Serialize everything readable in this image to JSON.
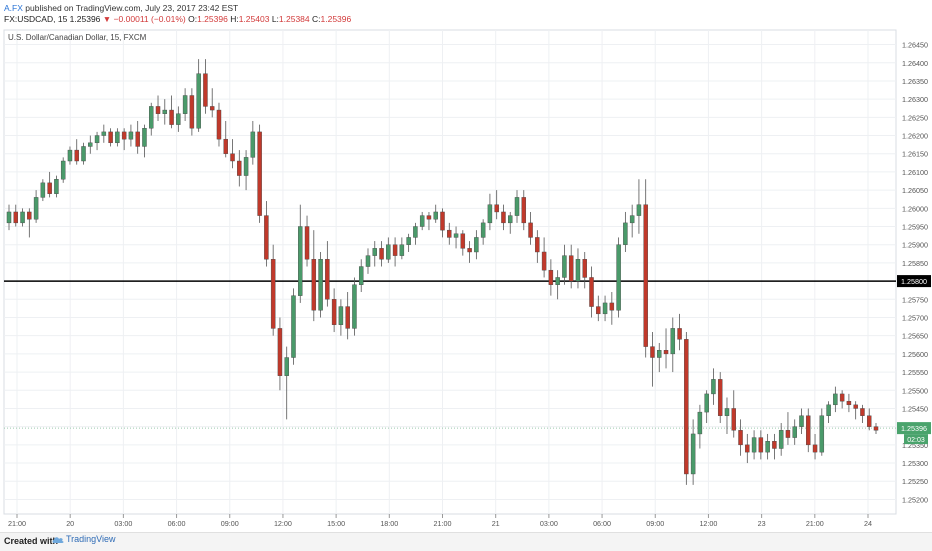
{
  "header": {
    "author": "A.FX",
    "published_text": "published on TradingView.com, July 23, 2017 23:42 EST",
    "symbol": "FX:USDCAD, 15",
    "last": "1.25396",
    "change": "−0.00011 (−0.01%)",
    "o_label": "O:",
    "o_value": "1.25396",
    "h_label": "H:",
    "h_value": "1.25403",
    "l_label": "L:",
    "l_value": "1.25384",
    "c_label": "C:",
    "c_value": "1.25396"
  },
  "footer": {
    "created_with": "Created with",
    "brand": "TradingView"
  },
  "chart_data": {
    "type": "candlestick",
    "title": "U.S. Dollar/Canadian Dollar, 15, FXCM",
    "ylim": [
      1.2516,
      1.2649
    ],
    "y_ticks": [
      "1.26450",
      "1.26400",
      "1.26350",
      "1.26300",
      "1.26250",
      "1.26200",
      "1.26150",
      "1.26100",
      "1.26050",
      "1.26000",
      "1.25950",
      "1.25900",
      "1.25850",
      "1.25800",
      "1.25750",
      "1.25700",
      "1.25650",
      "1.25600",
      "1.25550",
      "1.25500",
      "1.25450",
      "1.25400",
      "1.25350",
      "1.25300",
      "1.25250",
      "1.25200"
    ],
    "x_ticks": [
      "21:00",
      "20",
      "03:00",
      "06:00",
      "09:00",
      "12:00",
      "15:00",
      "18:00",
      "21:00",
      "21",
      "03:00",
      "06:00",
      "09:00",
      "12:00",
      "23",
      "21:00",
      "24"
    ],
    "horizontal_line": {
      "value": 1.258,
      "label": "1.25800"
    },
    "last_price": {
      "value": 1.25396,
      "label": "1.25396",
      "countdown": "02:03"
    },
    "colors": {
      "up": "#4a9a6a",
      "down": "#c0392b",
      "wick": "#555555",
      "grid": "#eef0f3",
      "last": "#4aa36c",
      "hline": "#000000"
    },
    "candles": [
      [
        1.2596,
        1.2601,
        1.2594,
        1.2599
      ],
      [
        1.2599,
        1.2601,
        1.2595,
        1.2596
      ],
      [
        1.2596,
        1.26,
        1.2595,
        1.2599
      ],
      [
        1.2599,
        1.26,
        1.2592,
        1.2597
      ],
      [
        1.2597,
        1.2605,
        1.2596,
        1.2603
      ],
      [
        1.2603,
        1.2608,
        1.2602,
        1.2607
      ],
      [
        1.2607,
        1.261,
        1.2603,
        1.2604
      ],
      [
        1.2604,
        1.2609,
        1.2603,
        1.2608
      ],
      [
        1.2608,
        1.2614,
        1.2607,
        1.2613
      ],
      [
        1.2613,
        1.2617,
        1.2612,
        1.2616
      ],
      [
        1.2616,
        1.2619,
        1.2612,
        1.2613
      ],
      [
        1.2613,
        1.2618,
        1.2612,
        1.2617
      ],
      [
        1.2617,
        1.262,
        1.2615,
        1.2618
      ],
      [
        1.2618,
        1.2621,
        1.2616,
        1.262
      ],
      [
        1.262,
        1.2623,
        1.2618,
        1.2621
      ],
      [
        1.2621,
        1.2622,
        1.2617,
        1.2618
      ],
      [
        1.2618,
        1.2622,
        1.2617,
        1.2621
      ],
      [
        1.2621,
        1.2622,
        1.2616,
        1.2619
      ],
      [
        1.2619,
        1.2623,
        1.2617,
        1.2621
      ],
      [
        1.2621,
        1.2624,
        1.2615,
        1.2617
      ],
      [
        1.2617,
        1.2623,
        1.2614,
        1.2622
      ],
      [
        1.2622,
        1.2629,
        1.262,
        1.2628
      ],
      [
        1.2628,
        1.2631,
        1.2624,
        1.2626
      ],
      [
        1.2626,
        1.263,
        1.2623,
        1.2627
      ],
      [
        1.2627,
        1.2631,
        1.2622,
        1.2623
      ],
      [
        1.2623,
        1.2628,
        1.2621,
        1.2626
      ],
      [
        1.2626,
        1.2633,
        1.2624,
        1.2631
      ],
      [
        1.2631,
        1.2633,
        1.262,
        1.2622
      ],
      [
        1.2622,
        1.2641,
        1.2621,
        1.2637
      ],
      [
        1.2637,
        1.2641,
        1.2626,
        1.2628
      ],
      [
        1.2628,
        1.2633,
        1.2625,
        1.2627
      ],
      [
        1.2627,
        1.2629,
        1.2617,
        1.2619
      ],
      [
        1.2619,
        1.2624,
        1.2614,
        1.2615
      ],
      [
        1.2615,
        1.2619,
        1.2611,
        1.2613
      ],
      [
        1.2613,
        1.2616,
        1.2606,
        1.2609
      ],
      [
        1.2609,
        1.2616,
        1.2605,
        1.2614
      ],
      [
        1.2614,
        1.2624,
        1.2612,
        1.2621
      ],
      [
        1.2621,
        1.2623,
        1.2596,
        1.2598
      ],
      [
        1.2598,
        1.2602,
        1.2584,
        1.2586
      ],
      [
        1.2586,
        1.259,
        1.2565,
        1.2567
      ],
      [
        1.2567,
        1.257,
        1.255,
        1.2554
      ],
      [
        1.2554,
        1.2562,
        1.2542,
        1.2559
      ],
      [
        1.2559,
        1.2578,
        1.2557,
        1.2576
      ],
      [
        1.2576,
        1.2601,
        1.2574,
        1.2595
      ],
      [
        1.2595,
        1.2598,
        1.2584,
        1.2586
      ],
      [
        1.2586,
        1.2594,
        1.2569,
        1.2572
      ],
      [
        1.2572,
        1.2588,
        1.257,
        1.2586
      ],
      [
        1.2586,
        1.2591,
        1.2573,
        1.2575
      ],
      [
        1.2575,
        1.2578,
        1.2566,
        1.2568
      ],
      [
        1.2568,
        1.2575,
        1.2565,
        1.2573
      ],
      [
        1.2573,
        1.2577,
        1.2564,
        1.2567
      ],
      [
        1.2567,
        1.2581,
        1.2565,
        1.2579
      ],
      [
        1.2579,
        1.2586,
        1.2577,
        1.2584
      ],
      [
        1.2584,
        1.2589,
        1.2582,
        1.2587
      ],
      [
        1.2587,
        1.2591,
        1.2584,
        1.2589
      ],
      [
        1.2589,
        1.2591,
        1.2584,
        1.2586
      ],
      [
        1.2586,
        1.2592,
        1.2585,
        1.259
      ],
      [
        1.259,
        1.2592,
        1.2584,
        1.2587
      ],
      [
        1.2587,
        1.2592,
        1.2586,
        1.259
      ],
      [
        1.259,
        1.2593,
        1.2588,
        1.2592
      ],
      [
        1.2592,
        1.2596,
        1.259,
        1.2595
      ],
      [
        1.2595,
        1.2599,
        1.2594,
        1.2598
      ],
      [
        1.2598,
        1.2599,
        1.2594,
        1.2597
      ],
      [
        1.2597,
        1.2601,
        1.2596,
        1.2599
      ],
      [
        1.2599,
        1.26,
        1.2592,
        1.2594
      ],
      [
        1.2594,
        1.2596,
        1.259,
        1.2592
      ],
      [
        1.2592,
        1.2595,
        1.2589,
        1.2593
      ],
      [
        1.2593,
        1.2594,
        1.2587,
        1.2589
      ],
      [
        1.2589,
        1.2591,
        1.2585,
        1.2588
      ],
      [
        1.2588,
        1.2594,
        1.2586,
        1.2592
      ],
      [
        1.2592,
        1.2597,
        1.259,
        1.2596
      ],
      [
        1.2596,
        1.2604,
        1.2594,
        1.2601
      ],
      [
        1.2601,
        1.2605,
        1.2597,
        1.2599
      ],
      [
        1.2599,
        1.2601,
        1.2594,
        1.2596
      ],
      [
        1.2596,
        1.2599,
        1.2593,
        1.2598
      ],
      [
        1.2598,
        1.2605,
        1.2596,
        1.2603
      ],
      [
        1.2603,
        1.2605,
        1.2594,
        1.2596
      ],
      [
        1.2596,
        1.2599,
        1.259,
        1.2592
      ],
      [
        1.2592,
        1.2594,
        1.2585,
        1.2588
      ],
      [
        1.2588,
        1.2592,
        1.2581,
        1.2583
      ],
      [
        1.2583,
        1.2586,
        1.2576,
        1.2579
      ],
      [
        1.2579,
        1.2583,
        1.2575,
        1.2581
      ],
      [
        1.2581,
        1.259,
        1.2579,
        1.2587
      ],
      [
        1.2587,
        1.259,
        1.2578,
        1.258
      ],
      [
        1.258,
        1.2589,
        1.2578,
        1.2586
      ],
      [
        1.2586,
        1.2588,
        1.2578,
        1.2581
      ],
      [
        1.2581,
        1.2584,
        1.257,
        1.2573
      ],
      [
        1.2573,
        1.2576,
        1.2569,
        1.2571
      ],
      [
        1.2571,
        1.2576,
        1.2569,
        1.2574
      ],
      [
        1.2574,
        1.2577,
        1.2568,
        1.2572
      ],
      [
        1.2572,
        1.2592,
        1.257,
        1.259
      ],
      [
        1.259,
        1.2599,
        1.2588,
        1.2596
      ],
      [
        1.2596,
        1.2601,
        1.2592,
        1.2598
      ],
      [
        1.2598,
        1.2608,
        1.2593,
        1.2601
      ],
      [
        1.2601,
        1.2608,
        1.2559,
        1.2562
      ],
      [
        1.2562,
        1.2566,
        1.2551,
        1.2559
      ],
      [
        1.2559,
        1.2563,
        1.2555,
        1.2561
      ],
      [
        1.2561,
        1.2567,
        1.2556,
        1.256
      ],
      [
        1.256,
        1.257,
        1.2555,
        1.2567
      ],
      [
        1.2567,
        1.2571,
        1.2561,
        1.2564
      ],
      [
        1.2564,
        1.2566,
        1.2524,
        1.2527
      ],
      [
        1.2527,
        1.2542,
        1.2524,
        1.2538
      ],
      [
        1.2538,
        1.2546,
        1.2534,
        1.2544
      ],
      [
        1.2544,
        1.255,
        1.2541,
        1.2549
      ],
      [
        1.2549,
        1.2556,
        1.2546,
        1.2553
      ],
      [
        1.2553,
        1.2555,
        1.2541,
        1.2543
      ],
      [
        1.2543,
        1.2548,
        1.2538,
        1.2545
      ],
      [
        1.2545,
        1.255,
        1.2537,
        1.2539
      ],
      [
        1.2539,
        1.2542,
        1.2532,
        1.2535
      ],
      [
        1.2535,
        1.2538,
        1.253,
        1.2533
      ],
      [
        1.2533,
        1.2539,
        1.2531,
        1.2537
      ],
      [
        1.2537,
        1.2539,
        1.2531,
        1.2533
      ],
      [
        1.2533,
        1.2538,
        1.2531,
        1.2536
      ],
      [
        1.2536,
        1.2538,
        1.2531,
        1.2534
      ],
      [
        1.2534,
        1.2541,
        1.2532,
        1.2539
      ],
      [
        1.2539,
        1.2544,
        1.2535,
        1.2537
      ],
      [
        1.2537,
        1.2542,
        1.2535,
        1.254
      ],
      [
        1.254,
        1.2545,
        1.2538,
        1.2543
      ],
      [
        1.2543,
        1.2545,
        1.2533,
        1.2535
      ],
      [
        1.2535,
        1.2538,
        1.2531,
        1.2533
      ],
      [
        1.2533,
        1.2545,
        1.2532,
        1.2543
      ],
      [
        1.2543,
        1.2547,
        1.2541,
        1.2546
      ],
      [
        1.2546,
        1.2551,
        1.2544,
        1.2549
      ],
      [
        1.2549,
        1.255,
        1.2545,
        1.2547
      ],
      [
        1.2547,
        1.2549,
        1.2544,
        1.2546
      ],
      [
        1.2546,
        1.2547,
        1.2542,
        1.2545
      ],
      [
        1.2545,
        1.2546,
        1.2541,
        1.2543
      ],
      [
        1.2543,
        1.2545,
        1.2539,
        1.254
      ],
      [
        1.254,
        1.2541,
        1.2538,
        1.2539
      ]
    ]
  }
}
